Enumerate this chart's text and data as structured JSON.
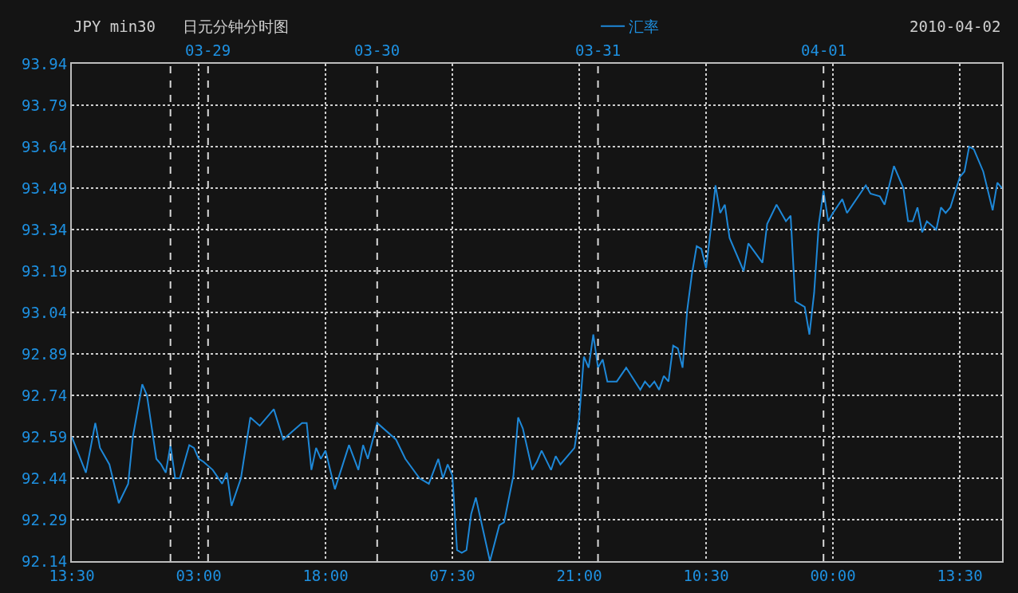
{
  "chart_data": {
    "type": "line",
    "title": "JPY min30",
    "subtitle": "日元分钟分时图",
    "annotations": [
      "2010-04-02",
      "03-29",
      "03-30",
      "03-31",
      "04-01"
    ],
    "categories": [
      "13:30",
      null,
      null,
      null,
      null,
      null,
      null,
      null,
      null,
      null,
      null,
      null,
      null,
      null,
      null,
      null,
      null,
      null,
      null,
      null,
      null,
      null,
      null,
      null,
      null,
      null,
      null,
      "03:00",
      null,
      null,
      null,
      null,
      null,
      null,
      null,
      null,
      null,
      null,
      null,
      null,
      null,
      null,
      null,
      null,
      null,
      null,
      null,
      null,
      null,
      null,
      null,
      null,
      null,
      null,
      "18:00",
      null,
      null,
      null,
      null,
      null,
      null,
      null,
      null,
      null,
      null,
      null,
      null,
      null,
      null,
      null,
      null,
      null,
      null,
      null,
      null,
      null,
      null,
      null,
      null,
      null,
      null,
      "07:30",
      null,
      null,
      null,
      null,
      null,
      null,
      null,
      null,
      null,
      null,
      null,
      null,
      null,
      null,
      null,
      null,
      null,
      null,
      null,
      null,
      null,
      null,
      null,
      null,
      null,
      null,
      "21:00",
      null,
      null,
      null,
      null,
      null,
      null,
      null,
      null,
      null,
      null,
      null,
      null,
      null,
      null,
      null,
      null,
      null,
      null,
      null,
      null,
      null,
      null,
      null,
      null,
      null,
      null,
      "10:30",
      null,
      null,
      null,
      null,
      null,
      null,
      null,
      null,
      null,
      null,
      null,
      null,
      null,
      null,
      null,
      null,
      null,
      null,
      null,
      null,
      null,
      null,
      null,
      null,
      null,
      null,
      "00:00",
      null,
      null,
      null,
      null,
      null,
      null,
      null,
      null,
      null,
      null,
      null,
      null,
      null,
      null,
      null,
      null,
      null,
      null,
      null,
      null,
      null,
      null,
      null,
      null,
      null,
      null,
      "13:30",
      null,
      null,
      null,
      null,
      null,
      null,
      null,
      null,
      null
    ],
    "series": [
      {
        "name": "汇率",
        "color": "#1e88d8",
        "values": [
          92.59,
          null,
          null,
          92.46,
          null,
          92.64,
          92.55,
          null,
          92.49,
          null,
          92.35,
          null,
          92.42,
          92.59,
          null,
          92.78,
          92.74,
          null,
          92.51,
          92.49,
          92.46,
          92.56,
          92.44,
          92.44,
          null,
          92.56,
          92.55,
          92.51,
          92.5,
          null,
          92.47,
          null,
          92.42,
          92.46,
          92.34,
          null,
          92.44,
          null,
          92.66,
          null,
          92.63,
          null,
          null,
          92.69,
          null,
          92.58,
          null,
          92.61,
          null,
          92.64,
          92.64,
          92.47,
          92.55,
          92.51,
          92.54,
          null,
          92.4,
          null,
          null,
          92.56,
          null,
          92.47,
          92.56,
          92.51,
          null,
          92.64,
          null,
          null,
          null,
          92.58,
          null,
          92.51,
          null,
          null,
          92.44,
          null,
          92.42,
          null,
          92.51,
          92.44,
          92.49,
          92.45,
          92.18,
          92.17,
          92.18,
          92.31,
          92.37,
          null,
          null,
          92.14,
          null,
          92.27,
          92.28,
          null,
          92.45,
          92.66,
          92.62,
          null,
          92.47,
          92.5,
          92.54,
          null,
          92.47,
          92.52,
          92.49,
          null,
          null,
          92.55,
          92.66,
          92.88,
          92.84,
          92.96,
          92.84,
          92.87,
          92.79,
          null,
          92.79,
          null,
          92.84,
          null,
          null,
          92.76,
          92.79,
          92.77,
          92.79,
          92.76,
          92.81,
          92.79,
          92.92,
          92.91,
          92.84,
          93.05,
          93.18,
          93.28,
          93.27,
          93.2,
          93.34,
          93.5,
          93.4,
          93.43,
          93.31,
          null,
          null,
          93.19,
          93.29,
          null,
          null,
          93.22,
          93.36,
          null,
          93.43,
          null,
          93.37,
          93.39,
          93.08,
          null,
          93.06,
          92.96,
          93.11,
          93.36,
          93.48,
          93.37,
          93.4,
          null,
          93.45,
          93.4,
          null,
          null,
          null,
          93.5,
          93.47,
          null,
          93.46,
          93.43,
          null,
          93.57,
          null,
          93.49,
          93.37,
          93.37,
          93.42,
          93.33,
          93.37,
          null,
          93.34,
          93.42,
          93.4,
          93.42,
          null,
          93.53,
          93.55,
          93.64,
          93.63,
          null,
          93.55,
          null,
          93.41,
          93.51,
          93.49
        ]
      }
    ],
    "ylim": [
      92.14,
      93.94
    ],
    "yticks": [
      92.14,
      92.29,
      92.44,
      92.59,
      92.74,
      92.89,
      93.04,
      93.19,
      93.34,
      93.49,
      93.64,
      93.79,
      93.94
    ],
    "grid": true,
    "legend": "top",
    "marker": "none",
    "line_style": "solid"
  }
}
